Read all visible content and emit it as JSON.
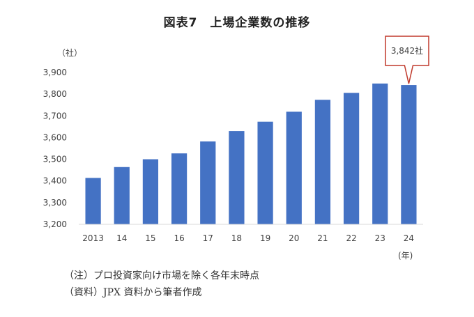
{
  "title": "図表7　上場企業数の推移",
  "chart_data": {
    "type": "bar",
    "title": "図表7　上場企業数の推移",
    "ylabel": "（社）",
    "xlabel": "(年)",
    "categories": [
      "2013",
      "14",
      "15",
      "16",
      "17",
      "18",
      "19",
      "20",
      "21",
      "22",
      "23",
      "24"
    ],
    "values": [
      3414,
      3464,
      3500,
      3527,
      3582,
      3630,
      3673,
      3719,
      3774,
      3806,
      3849,
      3842
    ],
    "ylim": [
      3200,
      3900
    ],
    "yticks": [
      3200,
      3300,
      3400,
      3500,
      3600,
      3700,
      3800,
      3900
    ],
    "ytick_labels": [
      "3,200",
      "3,300",
      "3,400",
      "3,500",
      "3,600",
      "3,700",
      "3,800",
      "3,900"
    ],
    "callout": {
      "category": "24",
      "text": "3,842社"
    },
    "colors": {
      "bar": "#4472C4",
      "callout_border": "#C0392B",
      "axis": "#D9D9D9"
    }
  },
  "notes": [
    "（注）プロ投資家向け市場を除く各年末時点",
    "（資料）JPX 資料から筆者作成"
  ]
}
